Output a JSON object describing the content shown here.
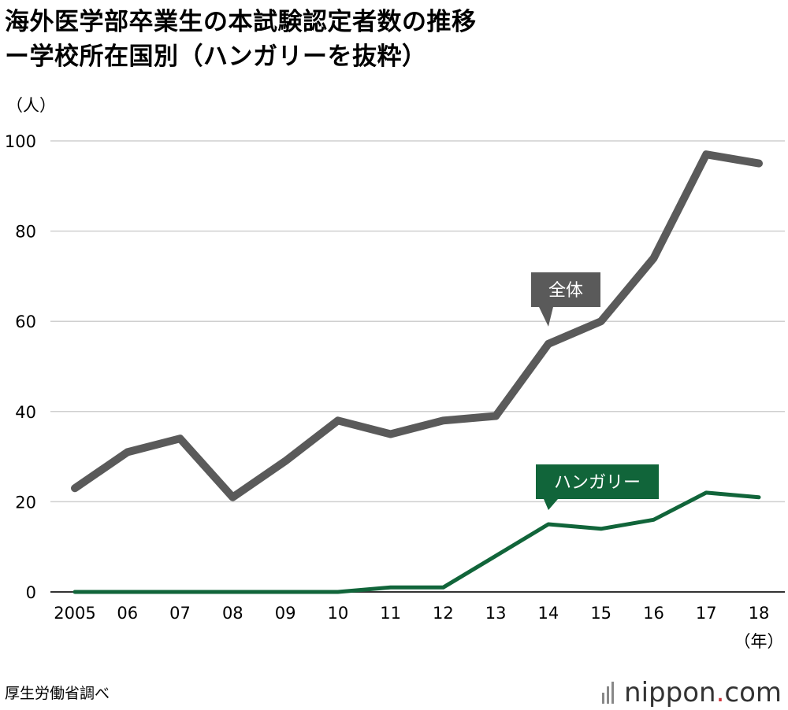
{
  "title": {
    "line1": "海外医学部卒業生の本試験認定者数の推移",
    "line2": "ー学校所在国別（ハンガリーを抜粋）"
  },
  "source": "厚生労働省調べ",
  "logo": {
    "text_main": "nippon",
    "text_dot": ".",
    "text_tail": "com",
    "dot_color": "#d0343b"
  },
  "chart_data": {
    "type": "line",
    "x": [
      "2005",
      "06",
      "07",
      "08",
      "09",
      "10",
      "11",
      "12",
      "13",
      "14",
      "15",
      "16",
      "17",
      "18"
    ],
    "ylabel": "（人）",
    "xlabel": "（年）",
    "ylim": [
      0,
      100
    ],
    "yticks": [
      0,
      20,
      40,
      60,
      80,
      100
    ],
    "grid": true,
    "series": [
      {
        "name": "全体",
        "color": "#5a5a5a",
        "values": [
          23,
          31,
          34,
          21,
          29,
          38,
          35,
          38,
          39,
          55,
          60,
          74,
          97,
          95
        ],
        "label_at_index": 9
      },
      {
        "name": "ハンガリー",
        "color": "#11653a",
        "values": [
          0,
          0,
          0,
          0,
          0,
          0,
          1,
          1,
          8,
          15,
          14,
          16,
          22,
          21
        ],
        "label_at_index": 9
      }
    ]
  }
}
